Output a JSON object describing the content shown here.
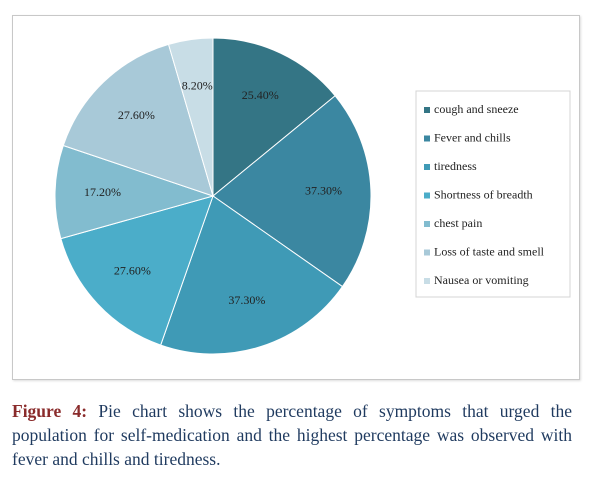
{
  "chart_data": {
    "type": "pie",
    "categories": [
      "cough and sneeze",
      "Fever and chills",
      "tiredness",
      "Shortness of breadth",
      "chest pain",
      "Loss of taste and smell",
      "Nausea or vomiting"
    ],
    "values": [
      25.4,
      37.3,
      37.3,
      27.6,
      17.2,
      27.6,
      8.2
    ],
    "value_labels": [
      "25.40%",
      "37.30%",
      "37.30%",
      "27.60%",
      "17.20%",
      "27.60%",
      "8.20%"
    ],
    "colors": [
      "#347585",
      "#3b87a1",
      "#3f9ab6",
      "#4badc9",
      "#82bccf",
      "#a8c9d8",
      "#c8dde6"
    ],
    "legend": "right"
  },
  "caption": {
    "label": "Figure 4:",
    "text": "Pie chart shows the percentage of symptoms that urged the population for self-medication and the highest percentage was observed with fever and chills and tiredness."
  }
}
